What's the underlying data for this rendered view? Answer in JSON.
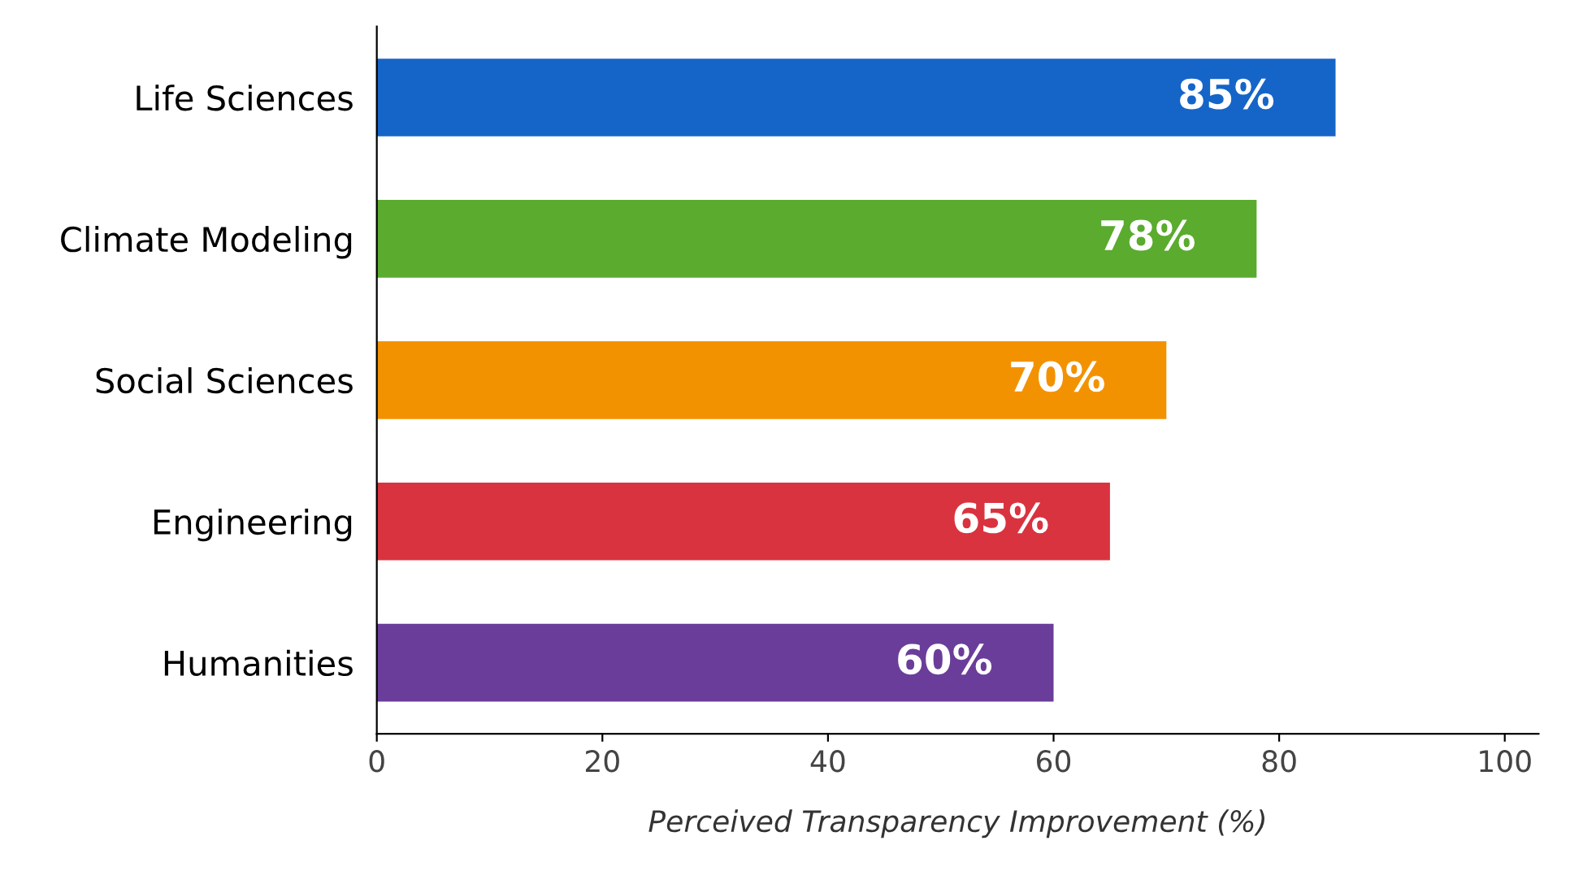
{
  "chart_data": {
    "type": "bar",
    "orientation": "horizontal",
    "categories": [
      "Life Sciences",
      "Climate Modeling",
      "Social Sciences",
      "Engineering",
      "Humanities"
    ],
    "values": [
      85,
      78,
      70,
      65,
      60
    ],
    "colors": [
      "#1565c8",
      "#5aab2e",
      "#f39200",
      "#d9333f",
      "#6a3d9a"
    ],
    "value_labels": [
      "85%",
      "78%",
      "70%",
      "65%",
      "60%"
    ],
    "xlabel": "Perceived Transparency Improvement (%)",
    "xlim": [
      0,
      103
    ],
    "xticks": [
      0,
      20,
      40,
      60,
      80,
      100
    ],
    "grid": false
  }
}
